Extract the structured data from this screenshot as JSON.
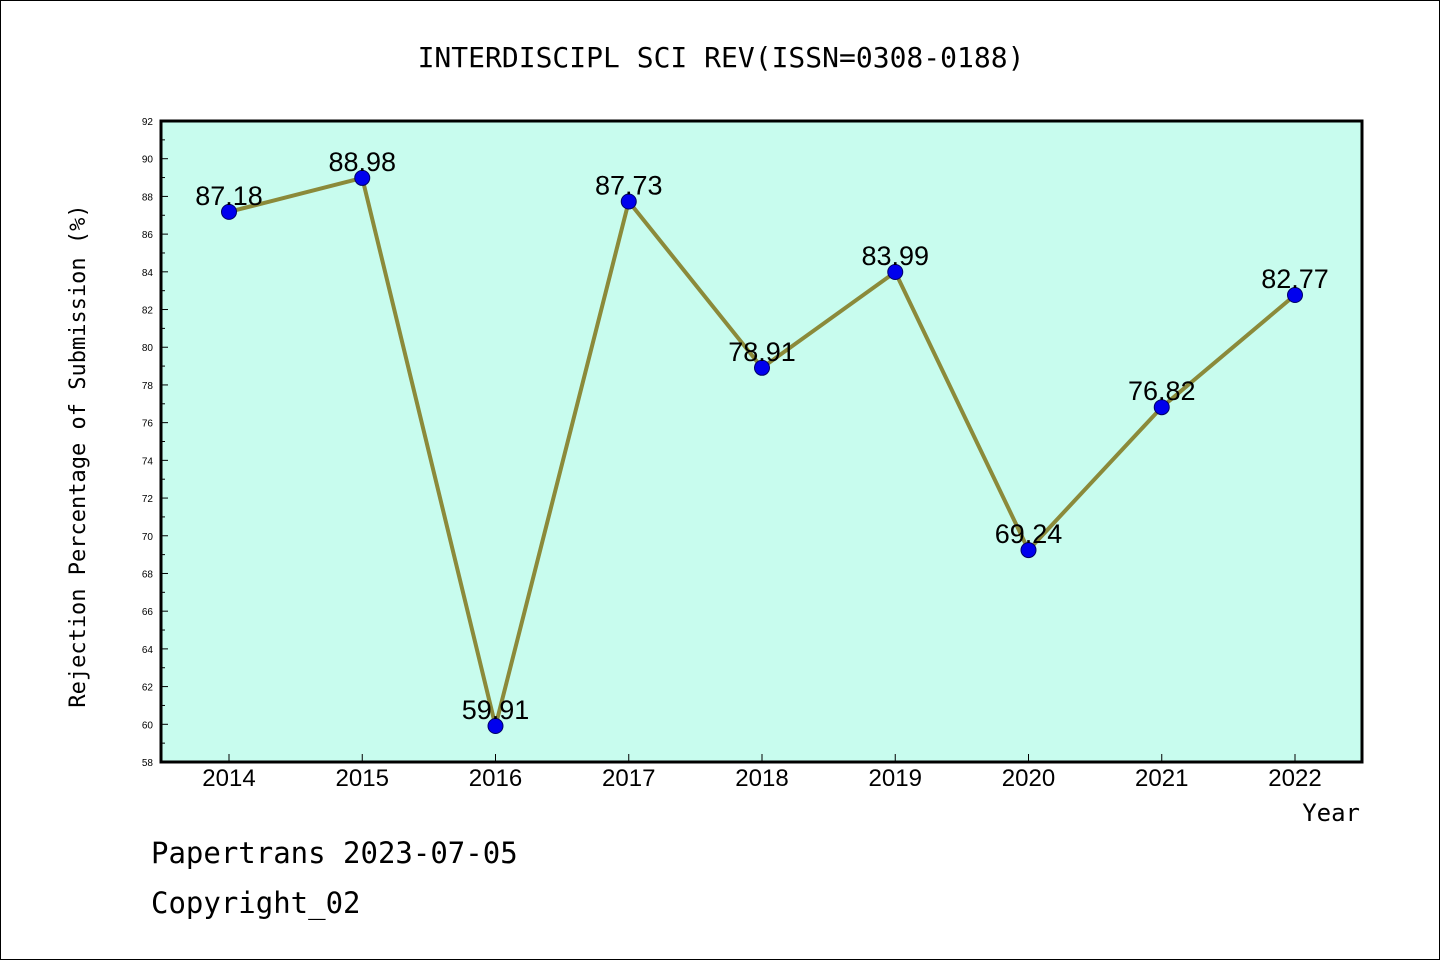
{
  "footer": {
    "line1": "Papertrans 2023-07-05",
    "line2": "Copyright_02"
  },
  "chart_data": {
    "type": "line",
    "title": "INTERDISCIPL SCI REV(ISSN=0308-0188)",
    "xlabel": "Year",
    "ylabel": "Rejection Percentage of Submission (%)",
    "categories": [
      "2014",
      "2015",
      "2016",
      "2017",
      "2018",
      "2019",
      "2020",
      "2021",
      "2022"
    ],
    "series": [
      {
        "values": [
          87.18,
          88.98,
          59.91,
          87.73,
          78.91,
          83.99,
          69.24,
          76.82,
          82.77
        ]
      }
    ],
    "data_labels": [
      "87.18",
      "88.98",
      "59.91",
      "87.73",
      "78.91",
      "83.99",
      "69.24",
      "76.82",
      "82.77"
    ],
    "ylim": [
      58,
      92
    ],
    "yticks": [
      58,
      60,
      62,
      64,
      66,
      68,
      70,
      72,
      74,
      76,
      78,
      80,
      82,
      84,
      86,
      88,
      90,
      92
    ],
    "grid": false,
    "colors": {
      "plot_background": "#c8fcee",
      "line": "#8b8a3a",
      "marker": "#0000ee"
    }
  }
}
